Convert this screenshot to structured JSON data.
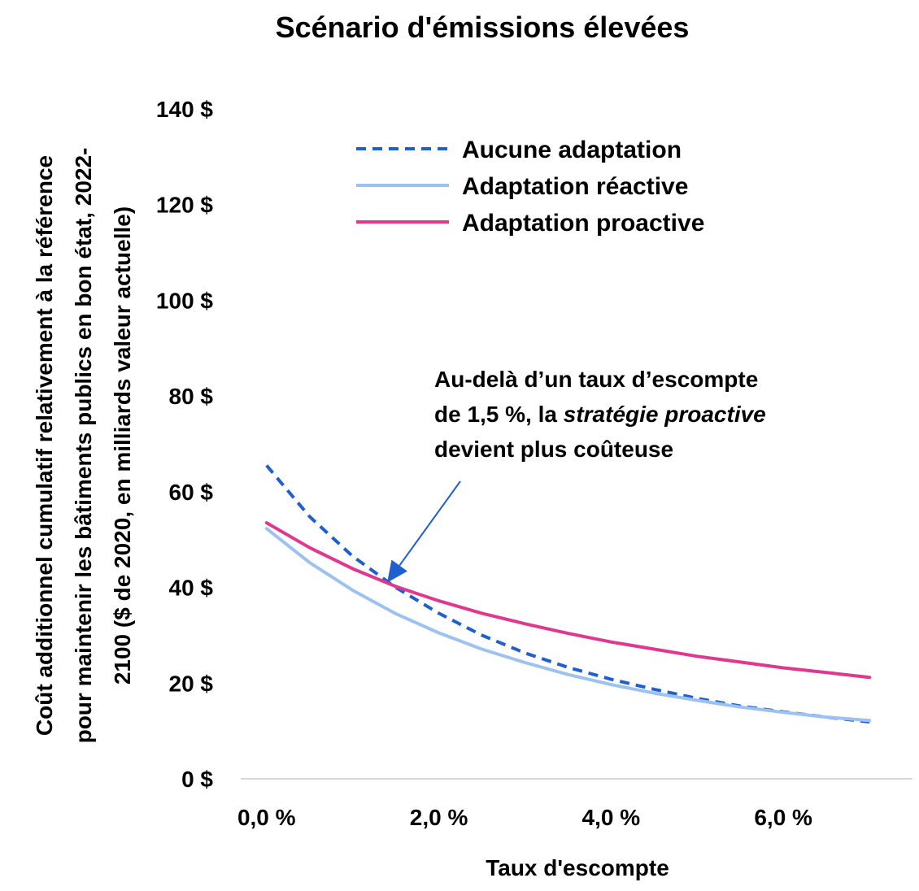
{
  "chart_data": {
    "type": "line",
    "title": "Scénario d'émissions élevées",
    "xlabel": "Taux d'escompte",
    "ylabel_lines": [
      "Coût additionnel cumulatif relativement à la référence",
      "pour maintenir les bâtiments publics en bon état, 2022-",
      "2100 ($ de 2020, en milliards valeur actuelle)"
    ],
    "xlim": [
      -0.3,
      7.5
    ],
    "ylim": [
      0,
      140
    ],
    "x_ticks": [
      0,
      2,
      4,
      6
    ],
    "x_tick_labels": [
      "0,0 %",
      "2,0 %",
      "4,0 %",
      "6,0 %"
    ],
    "y_ticks": [
      0,
      20,
      40,
      60,
      80,
      100,
      120,
      140
    ],
    "y_tick_labels": [
      "0 $",
      "20 $",
      "40 $",
      "60 $",
      "80 $",
      "100 $",
      "120 $",
      "140 $"
    ],
    "x": [
      0.0,
      0.5,
      1.0,
      1.5,
      2.0,
      2.5,
      3.0,
      3.5,
      4.0,
      4.5,
      5.0,
      5.5,
      6.0,
      6.5,
      7.0
    ],
    "series": [
      {
        "name": "Aucune adaptation",
        "style": "dashed",
        "color": "#1f5fcf",
        "values": [
          65.5,
          54.8,
          46.5,
          40.0,
          34.6,
          30.0,
          26.3,
          23.3,
          20.8,
          18.7,
          16.8,
          15.2,
          14.0,
          12.9,
          11.9
        ]
      },
      {
        "name": "Adaptation réactive",
        "style": "solid",
        "color": "#9ec2f0",
        "values": [
          52.3,
          45.2,
          39.4,
          34.5,
          30.5,
          27.1,
          24.3,
          21.8,
          19.7,
          17.9,
          16.4,
          15.0,
          13.9,
          12.9,
          12.2
        ]
      },
      {
        "name": "Adaptation proactive",
        "style": "solid",
        "color": "#e0388f",
        "values": [
          53.5,
          48.3,
          43.9,
          40.2,
          37.2,
          34.6,
          32.4,
          30.4,
          28.6,
          27.1,
          25.6,
          24.4,
          23.2,
          22.2,
          21.2
        ]
      }
    ],
    "legend_position": "top-center",
    "grid": false,
    "annotation": {
      "lines": [
        [
          {
            "text": "Au-delà d’un taux d’escompte",
            "italic": false
          }
        ],
        [
          {
            "text": "de 1,5 %, la ",
            "italic": false
          },
          {
            "text": "stratégie proactive",
            "italic": true
          }
        ],
        [
          {
            "text": "devient plus coûteuse",
            "italic": false
          }
        ]
      ],
      "arrow_points_to": {
        "x": 1.4,
        "y": 41
      },
      "arrow_color": "#1f5fcf"
    }
  }
}
